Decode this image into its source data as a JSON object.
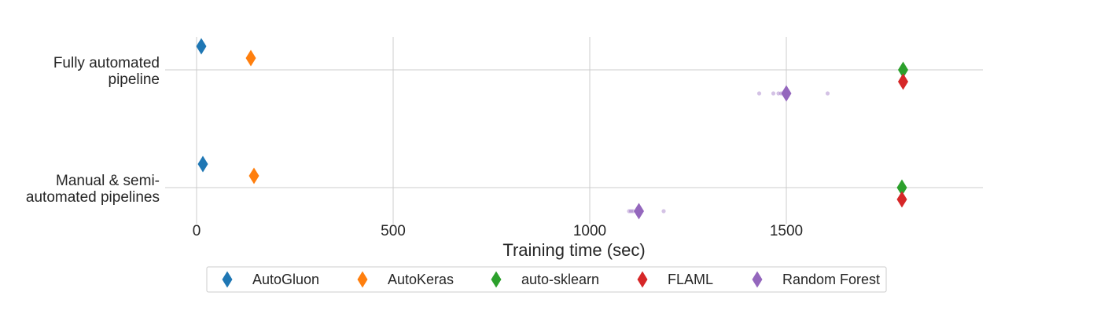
{
  "chart_data": {
    "type": "scatter",
    "title": "",
    "xlabel": "Training time (sec)",
    "ylabel": "",
    "xlim": [
      -80,
      2000
    ],
    "xticks": [
      0,
      500,
      1000,
      1500
    ],
    "grid": true,
    "legend_position": "bottom",
    "categories": [
      {
        "key": "fully",
        "lines": [
          "Fully automated",
          "pipeline"
        ]
      },
      {
        "key": "manual",
        "lines": [
          "Manual & semi-",
          "automated pipelines"
        ]
      }
    ],
    "series": [
      {
        "name": "AutoGluon",
        "color": "#1f77b4",
        "points": {
          "fully": 12,
          "manual": 16
        }
      },
      {
        "name": "AutoKeras",
        "color": "#ff7f0e",
        "points": {
          "fully": 138,
          "manual": 146
        }
      },
      {
        "name": "auto-sklearn",
        "color": "#2ca02c",
        "points": {
          "fully": 1797,
          "manual": 1794
        }
      },
      {
        "name": "FLAML",
        "color": "#d62728",
        "points": {
          "fully": 1797,
          "manual": 1794
        }
      },
      {
        "name": "Random Forest",
        "color": "#9467bd",
        "points": {
          "fully": 1500,
          "manual": 1125
        },
        "raw": {
          "fully": [
            1431,
            1467,
            1480,
            1487,
            1497,
            1500,
            1502,
            1605
          ],
          "manual": [
            1100,
            1105,
            1110,
            1120,
            1130,
            1188
          ]
        }
      }
    ]
  }
}
